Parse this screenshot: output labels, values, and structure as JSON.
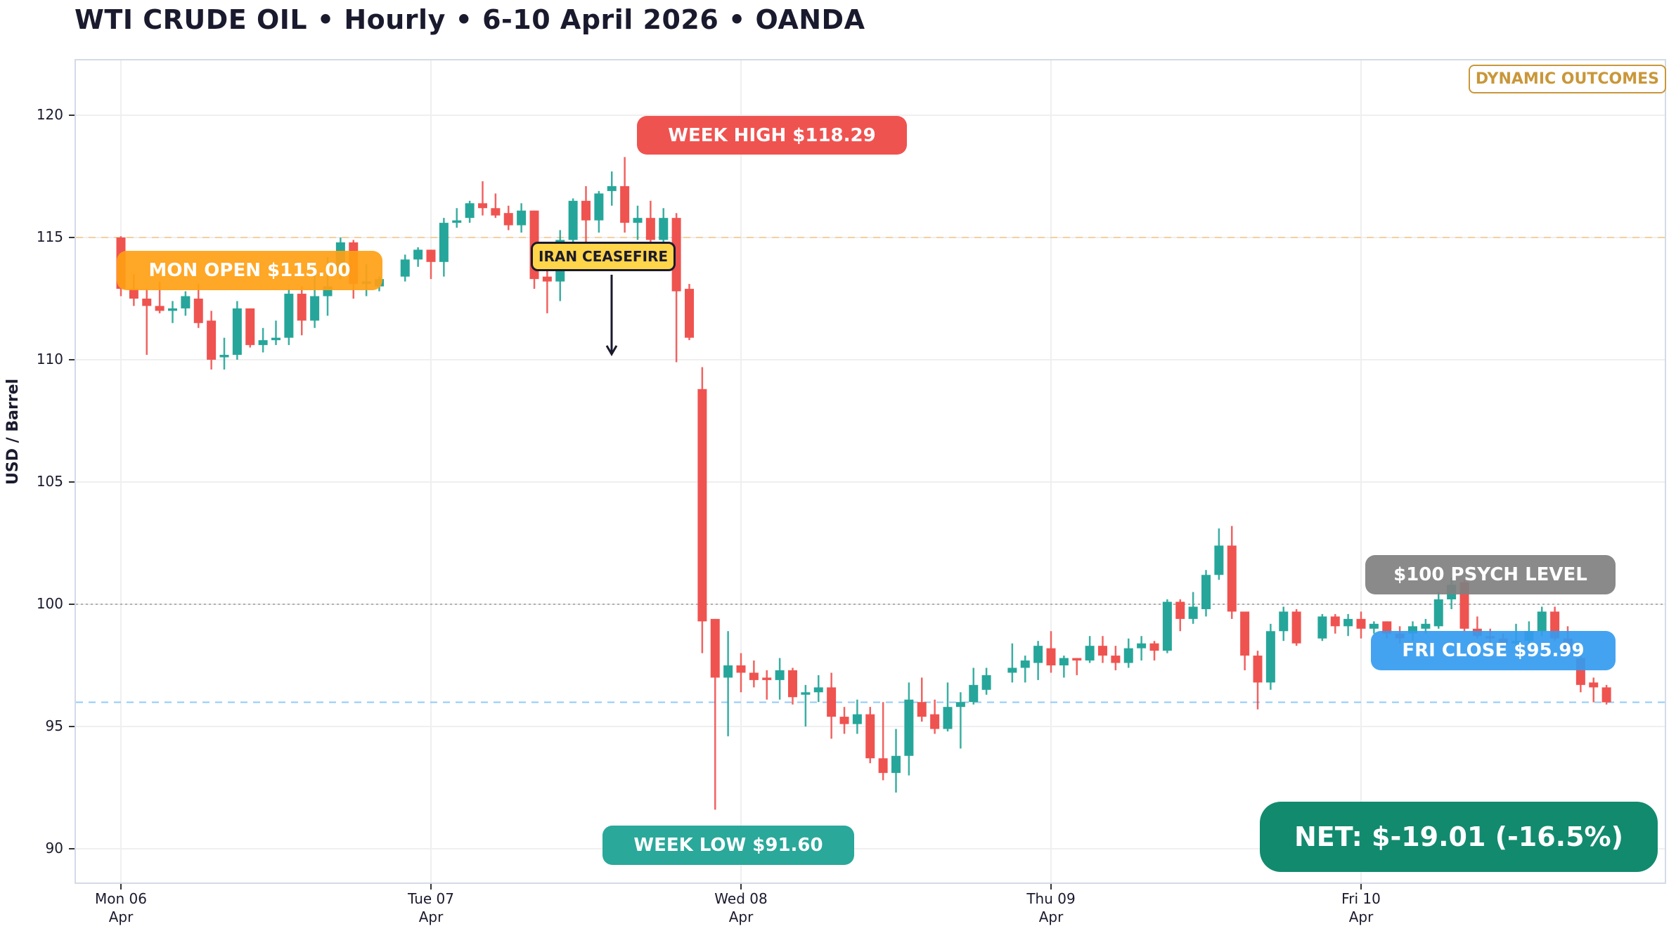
{
  "title": "WTI CRUDE OIL  •  Hourly  •  6-10 April 2026  •  OANDA",
  "brand": "DYNAMIC OUTCOMES",
  "annotations": {
    "mon_open": "MON OPEN  $115.00",
    "week_high": "WEEK HIGH  $118.29",
    "week_low": "WEEK LOW  $91.60",
    "ceasefire": "IRAN CEASEFIRE",
    "psych_level": "$100 PSYCH LEVEL",
    "fri_close": "FRI CLOSE  $95.99",
    "net": "NET:  $-19.01   (-16.5%)"
  },
  "colors": {
    "up": "#26a69a",
    "down": "#ef5350",
    "mon_open": "#ffa726",
    "week_high": "#ef5350",
    "week_low": "#2aa89a",
    "psych": "#8a8a8a",
    "fri_close": "#42a5f5",
    "net": "#128a6e",
    "brand": "#c9973a",
    "ceasefire": "#ffd54a"
  },
  "chart_data": {
    "type": "candlestick",
    "title": "WTI CRUDE OIL • Hourly • 6-10 April 2026 • OANDA",
    "xlabel": "",
    "ylabel": "USD / Barrel",
    "ylim": [
      88.6,
      122.2
    ],
    "yticks": [
      90,
      95,
      100,
      105,
      110,
      115,
      120
    ],
    "xticks": [
      {
        "label": "Mon 06",
        "sub": "Apr",
        "index": 0
      },
      {
        "label": "Tue 07",
        "sub": "Apr",
        "index": 24
      },
      {
        "label": "Wed 08",
        "sub": "Apr",
        "index": 48
      },
      {
        "label": "Thu 09",
        "sub": "Apr",
        "index": 72
      },
      {
        "label": "Fri 10",
        "sub": "Apr",
        "index": 96
      }
    ],
    "grid": true,
    "reference_lines": [
      {
        "name": "Mon Open",
        "value": 115.0,
        "style": "dashed",
        "color": "#f5d0a0"
      },
      {
        "name": "$100 Psych Level",
        "value": 100.0,
        "style": "dotted",
        "color": "#b0b0b0"
      },
      {
        "name": "Fri Close",
        "value": 95.99,
        "style": "dashed",
        "color": "#90caf9"
      }
    ],
    "summary": {
      "open": 115.0,
      "high": 118.29,
      "low": 91.6,
      "close": 95.99,
      "net_change": -19.01,
      "net_pct": -16.5
    },
    "candles": [
      {
        "i": 0,
        "o": 115.0,
        "h": 115.05,
        "l": 112.6,
        "c": 112.9
      },
      {
        "i": 1,
        "o": 112.9,
        "h": 113.5,
        "l": 112.2,
        "c": 112.5
      },
      {
        "i": 2,
        "o": 112.5,
        "h": 112.9,
        "l": 110.2,
        "c": 112.2
      },
      {
        "i": 3,
        "o": 112.2,
        "h": 113.2,
        "l": 111.9,
        "c": 112.0
      },
      {
        "i": 4,
        "o": 112.0,
        "h": 112.4,
        "l": 111.5,
        "c": 112.1
      },
      {
        "i": 5,
        "o": 112.1,
        "h": 112.8,
        "l": 111.8,
        "c": 112.6
      },
      {
        "i": 6,
        "o": 112.5,
        "h": 113.1,
        "l": 111.3,
        "c": 111.5
      },
      {
        "i": 7,
        "o": 111.6,
        "h": 112.0,
        "l": 109.6,
        "c": 110.0
      },
      {
        "i": 8,
        "o": 110.1,
        "h": 110.9,
        "l": 109.6,
        "c": 110.2
      },
      {
        "i": 9,
        "o": 110.2,
        "h": 112.4,
        "l": 110.0,
        "c": 112.1
      },
      {
        "i": 10,
        "o": 112.1,
        "h": 112.1,
        "l": 110.5,
        "c": 110.6
      },
      {
        "i": 11,
        "o": 110.6,
        "h": 111.3,
        "l": 110.3,
        "c": 110.8
      },
      {
        "i": 12,
        "o": 110.8,
        "h": 111.6,
        "l": 110.6,
        "c": 110.9
      },
      {
        "i": 13,
        "o": 110.9,
        "h": 112.9,
        "l": 110.6,
        "c": 112.7
      },
      {
        "i": 14,
        "o": 112.7,
        "h": 113.0,
        "l": 111.0,
        "c": 111.6
      },
      {
        "i": 15,
        "o": 111.6,
        "h": 113.5,
        "l": 111.3,
        "c": 112.6
      },
      {
        "i": 16,
        "o": 112.6,
        "h": 114.2,
        "l": 111.8,
        "c": 113.0
      },
      {
        "i": 17,
        "o": 113.6,
        "h": 115.0,
        "l": 113.3,
        "c": 114.8
      },
      {
        "i": 18,
        "o": 114.8,
        "h": 114.9,
        "l": 112.5,
        "c": 113.1
      },
      {
        "i": 19,
        "o": 113.1,
        "h": 113.9,
        "l": 112.6,
        "c": 113.2
      },
      {
        "i": 20,
        "o": 113.0,
        "h": 113.4,
        "l": 112.8,
        "c": 113.3
      },
      {
        "i": 22,
        "o": 113.4,
        "h": 114.3,
        "l": 113.2,
        "c": 114.1
      },
      {
        "i": 23,
        "o": 114.1,
        "h": 114.6,
        "l": 113.8,
        "c": 114.5
      },
      {
        "i": 24,
        "o": 114.5,
        "h": 114.5,
        "l": 113.3,
        "c": 114.0
      },
      {
        "i": 25,
        "o": 114.0,
        "h": 115.8,
        "l": 113.4,
        "c": 115.6
      },
      {
        "i": 26,
        "o": 115.6,
        "h": 116.2,
        "l": 115.4,
        "c": 115.7
      },
      {
        "i": 27,
        "o": 115.8,
        "h": 116.5,
        "l": 115.6,
        "c": 116.4
      },
      {
        "i": 28,
        "o": 116.4,
        "h": 117.3,
        "l": 115.9,
        "c": 116.2
      },
      {
        "i": 29,
        "o": 116.2,
        "h": 116.8,
        "l": 115.8,
        "c": 115.9
      },
      {
        "i": 30,
        "o": 116.0,
        "h": 116.3,
        "l": 115.3,
        "c": 115.5
      },
      {
        "i": 31,
        "o": 115.5,
        "h": 116.4,
        "l": 115.2,
        "c": 116.1
      },
      {
        "i": 32,
        "o": 116.1,
        "h": 116.1,
        "l": 112.9,
        "c": 113.3
      },
      {
        "i": 33,
        "o": 113.4,
        "h": 114.1,
        "l": 111.9,
        "c": 113.2
      },
      {
        "i": 34,
        "o": 113.2,
        "h": 115.3,
        "l": 112.4,
        "c": 114.9
      },
      {
        "i": 35,
        "o": 114.9,
        "h": 116.6,
        "l": 114.5,
        "c": 116.5
      },
      {
        "i": 36,
        "o": 116.5,
        "h": 117.1,
        "l": 114.5,
        "c": 115.7
      },
      {
        "i": 37,
        "o": 115.7,
        "h": 116.9,
        "l": 115.2,
        "c": 116.8
      },
      {
        "i": 38,
        "o": 116.9,
        "h": 117.7,
        "l": 116.3,
        "c": 117.1
      },
      {
        "i": 39,
        "o": 117.1,
        "h": 118.29,
        "l": 115.2,
        "c": 115.6
      },
      {
        "i": 40,
        "o": 115.6,
        "h": 116.3,
        "l": 114.9,
        "c": 115.8
      },
      {
        "i": 41,
        "o": 115.8,
        "h": 116.5,
        "l": 114.0,
        "c": 114.9
      },
      {
        "i": 42,
        "o": 114.9,
        "h": 116.2,
        "l": 114.2,
        "c": 115.8
      },
      {
        "i": 43,
        "o": 115.8,
        "h": 116.0,
        "l": 109.9,
        "c": 112.8
      },
      {
        "i": 44,
        "o": 112.9,
        "h": 113.1,
        "l": 110.8,
        "c": 110.9
      },
      {
        "i": 45,
        "o": 108.8,
        "h": 109.7,
        "l": 98.0,
        "c": 99.3
      },
      {
        "i": 46,
        "o": 99.4,
        "h": 99.4,
        "l": 91.6,
        "c": 97.0
      },
      {
        "i": 47,
        "o": 97.0,
        "h": 98.9,
        "l": 94.6,
        "c": 97.5
      },
      {
        "i": 48,
        "o": 97.5,
        "h": 98.0,
        "l": 96.4,
        "c": 97.2
      },
      {
        "i": 49,
        "o": 97.2,
        "h": 97.7,
        "l": 96.6,
        "c": 96.9
      },
      {
        "i": 50,
        "o": 97.0,
        "h": 97.3,
        "l": 96.1,
        "c": 96.9
      },
      {
        "i": 51,
        "o": 96.9,
        "h": 97.8,
        "l": 96.1,
        "c": 97.3
      },
      {
        "i": 52,
        "o": 97.3,
        "h": 97.4,
        "l": 95.9,
        "c": 96.2
      },
      {
        "i": 53,
        "o": 96.3,
        "h": 96.7,
        "l": 95.0,
        "c": 96.4
      },
      {
        "i": 54,
        "o": 96.4,
        "h": 97.1,
        "l": 96.0,
        "c": 96.6
      },
      {
        "i": 55,
        "o": 96.6,
        "h": 97.2,
        "l": 94.5,
        "c": 95.4
      },
      {
        "i": 56,
        "o": 95.4,
        "h": 95.8,
        "l": 94.7,
        "c": 95.1
      },
      {
        "i": 57,
        "o": 95.1,
        "h": 96.1,
        "l": 94.7,
        "c": 95.5
      },
      {
        "i": 58,
        "o": 95.5,
        "h": 95.8,
        "l": 93.5,
        "c": 93.7
      },
      {
        "i": 59,
        "o": 93.7,
        "h": 96.0,
        "l": 92.8,
        "c": 93.1
      },
      {
        "i": 60,
        "o": 93.1,
        "h": 94.9,
        "l": 92.3,
        "c": 93.8
      },
      {
        "i": 61,
        "o": 93.8,
        "h": 96.8,
        "l": 93.0,
        "c": 96.1
      },
      {
        "i": 62,
        "o": 96.0,
        "h": 97.0,
        "l": 95.2,
        "c": 95.4
      },
      {
        "i": 63,
        "o": 95.5,
        "h": 96.1,
        "l": 94.7,
        "c": 94.9
      },
      {
        "i": 64,
        "o": 94.9,
        "h": 96.8,
        "l": 94.8,
        "c": 95.8
      },
      {
        "i": 65,
        "o": 95.8,
        "h": 96.4,
        "l": 94.1,
        "c": 96.0
      },
      {
        "i": 66,
        "o": 96.0,
        "h": 97.4,
        "l": 95.9,
        "c": 96.7
      },
      {
        "i": 67,
        "o": 96.5,
        "h": 97.4,
        "l": 96.3,
        "c": 97.1
      },
      {
        "i": 69,
        "o": 97.2,
        "h": 98.4,
        "l": 96.8,
        "c": 97.4
      },
      {
        "i": 70,
        "o": 97.4,
        "h": 97.9,
        "l": 96.8,
        "c": 97.7
      },
      {
        "i": 71,
        "o": 97.6,
        "h": 98.5,
        "l": 96.9,
        "c": 98.3
      },
      {
        "i": 72,
        "o": 98.2,
        "h": 98.9,
        "l": 97.2,
        "c": 97.5
      },
      {
        "i": 73,
        "o": 97.5,
        "h": 97.9,
        "l": 97.0,
        "c": 97.8
      },
      {
        "i": 74,
        "o": 97.8,
        "h": 97.8,
        "l": 97.1,
        "c": 97.7
      },
      {
        "i": 75,
        "o": 97.7,
        "h": 98.7,
        "l": 97.6,
        "c": 98.3
      },
      {
        "i": 76,
        "o": 98.3,
        "h": 98.7,
        "l": 97.6,
        "c": 97.9
      },
      {
        "i": 77,
        "o": 97.9,
        "h": 98.3,
        "l": 97.3,
        "c": 97.6
      },
      {
        "i": 78,
        "o": 97.6,
        "h": 98.6,
        "l": 97.4,
        "c": 98.2
      },
      {
        "i": 79,
        "o": 98.2,
        "h": 98.7,
        "l": 97.7,
        "c": 98.4
      },
      {
        "i": 80,
        "o": 98.4,
        "h": 98.5,
        "l": 97.7,
        "c": 98.1
      },
      {
        "i": 81,
        "o": 98.1,
        "h": 100.2,
        "l": 98.0,
        "c": 100.1
      },
      {
        "i": 82,
        "o": 100.1,
        "h": 100.2,
        "l": 98.9,
        "c": 99.4
      },
      {
        "i": 83,
        "o": 99.4,
        "h": 100.5,
        "l": 99.2,
        "c": 99.9
      },
      {
        "i": 84,
        "o": 99.8,
        "h": 101.4,
        "l": 99.5,
        "c": 101.2
      },
      {
        "i": 85,
        "o": 101.2,
        "h": 103.1,
        "l": 101.0,
        "c": 102.4
      },
      {
        "i": 86,
        "o": 102.4,
        "h": 103.2,
        "l": 99.4,
        "c": 99.7
      },
      {
        "i": 87,
        "o": 99.7,
        "h": 99.7,
        "l": 97.3,
        "c": 97.9
      },
      {
        "i": 88,
        "o": 97.9,
        "h": 98.1,
        "l": 95.7,
        "c": 96.8
      },
      {
        "i": 89,
        "o": 96.8,
        "h": 99.2,
        "l": 96.5,
        "c": 98.9
      },
      {
        "i": 90,
        "o": 98.9,
        "h": 99.9,
        "l": 98.5,
        "c": 99.7
      },
      {
        "i": 91,
        "o": 99.7,
        "h": 99.8,
        "l": 98.3,
        "c": 98.4
      },
      {
        "i": 93,
        "o": 98.6,
        "h": 99.6,
        "l": 98.5,
        "c": 99.5
      },
      {
        "i": 94,
        "o": 99.5,
        "h": 99.6,
        "l": 98.8,
        "c": 99.1
      },
      {
        "i": 95,
        "o": 99.1,
        "h": 99.6,
        "l": 98.7,
        "c": 99.4
      },
      {
        "i": 96,
        "o": 99.4,
        "h": 99.7,
        "l": 98.6,
        "c": 99.0
      },
      {
        "i": 97,
        "o": 99.0,
        "h": 99.3,
        "l": 98.8,
        "c": 99.2
      },
      {
        "i": 98,
        "o": 99.3,
        "h": 99.3,
        "l": 98.6,
        "c": 98.8
      },
      {
        "i": 99,
        "o": 98.8,
        "h": 99.1,
        "l": 98.4,
        "c": 98.6
      },
      {
        "i": 100,
        "o": 98.8,
        "h": 99.3,
        "l": 98.5,
        "c": 99.1
      },
      {
        "i": 101,
        "o": 99.0,
        "h": 99.4,
        "l": 98.8,
        "c": 99.2
      },
      {
        "i": 102,
        "o": 99.1,
        "h": 100.5,
        "l": 99.0,
        "c": 100.2
      },
      {
        "i": 103,
        "o": 100.2,
        "h": 101.1,
        "l": 99.8,
        "c": 100.8
      },
      {
        "i": 104,
        "o": 100.9,
        "h": 101.0,
        "l": 98.9,
        "c": 99.0
      },
      {
        "i": 105,
        "o": 99.0,
        "h": 99.5,
        "l": 98.6,
        "c": 98.7
      },
      {
        "i": 106,
        "o": 98.7,
        "h": 99.0,
        "l": 98.3,
        "c": 98.6
      },
      {
        "i": 107,
        "o": 98.6,
        "h": 98.8,
        "l": 98.1,
        "c": 98.4
      },
      {
        "i": 108,
        "o": 98.4,
        "h": 99.2,
        "l": 98.2,
        "c": 98.5
      },
      {
        "i": 109,
        "o": 98.5,
        "h": 99.3,
        "l": 98.3,
        "c": 98.9
      },
      {
        "i": 110,
        "o": 98.9,
        "h": 99.9,
        "l": 98.7,
        "c": 99.7
      },
      {
        "i": 111,
        "o": 99.7,
        "h": 99.9,
        "l": 98.5,
        "c": 98.6
      },
      {
        "i": 112,
        "o": 98.6,
        "h": 99.1,
        "l": 97.9,
        "c": 98.1
      },
      {
        "i": 113,
        "o": 97.8,
        "h": 98.1,
        "l": 96.4,
        "c": 96.7
      },
      {
        "i": 114,
        "o": 96.8,
        "h": 97.0,
        "l": 95.99,
        "c": 96.6
      },
      {
        "i": 115,
        "o": 96.6,
        "h": 96.7,
        "l": 95.9,
        "c": 95.99
      }
    ]
  }
}
